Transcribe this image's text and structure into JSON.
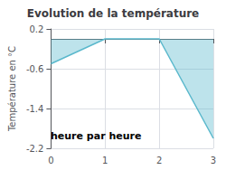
{
  "chart_data": {
    "type": "line",
    "title": "Evolution de la température",
    "ylabel": "Température en °C",
    "annotation": "heure par heure",
    "x": [
      0,
      1,
      2,
      3
    ],
    "values": [
      -0.5,
      0.0,
      0.0,
      -2.0
    ],
    "color": "#5ab8cc",
    "xlim": [
      0,
      3
    ],
    "xticks": [
      0,
      1,
      2,
      3
    ],
    "ylim": [
      -2.2,
      0.2
    ],
    "yticks": [
      -2.2,
      -1.4,
      -0.6,
      0.2
    ],
    "grid": true
  }
}
